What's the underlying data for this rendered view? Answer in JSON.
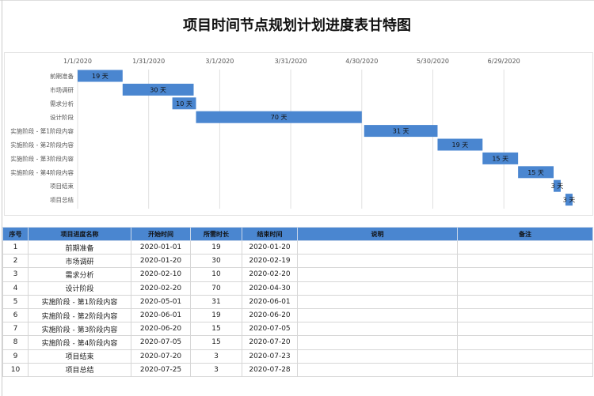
{
  "title": "项目时间节点规划计划进度表甘特图",
  "chart_data": {
    "type": "bar",
    "orientation": "horizontal-gantt",
    "categories": [
      "前期准备",
      "市场调研",
      "需求分析",
      "设计阶段",
      "实施阶段 - 第1阶段内容",
      "实施阶段 - 第2阶段内容",
      "实施阶段 - 第3阶段内容",
      "实施阶段 - 第4阶段内容",
      "项目结束",
      "项目总结"
    ],
    "start": [
      "2020-01-01",
      "2020-01-20",
      "2020-02-10",
      "2020-02-20",
      "2020-05-01",
      "2020-06-01",
      "2020-06-20",
      "2020-07-05",
      "2020-07-20",
      "2020-07-25"
    ],
    "values": [
      19,
      30,
      10,
      70,
      31,
      19,
      15,
      15,
      3,
      3
    ],
    "data_label_suffix": " 天",
    "x_ticks": [
      "1/1/2020",
      "1/31/2020",
      "3/1/2020",
      "3/31/2020",
      "4/30/2020",
      "5/30/2020",
      "6/29/2020"
    ],
    "xlim": [
      "2020-01-01",
      "2020-08-04"
    ],
    "grid": "vertical",
    "bar_color": "#4a86d0"
  },
  "table": {
    "headers": [
      "序号",
      "项目进度名称",
      "开始时间",
      "所需时长",
      "结束时间",
      "说明",
      "备注"
    ],
    "rows": [
      [
        "1",
        "前期准备",
        "2020-01-01",
        "19",
        "2020-01-20",
        "",
        ""
      ],
      [
        "2",
        "市场调研",
        "2020-01-20",
        "30",
        "2020-02-19",
        "",
        ""
      ],
      [
        "3",
        "需求分析",
        "2020-02-10",
        "10",
        "2020-02-20",
        "",
        ""
      ],
      [
        "4",
        "设计阶段",
        "2020-02-20",
        "70",
        "2020-04-30",
        "",
        ""
      ],
      [
        "5",
        "实施阶段 - 第1阶段内容",
        "2020-05-01",
        "31",
        "2020-06-01",
        "",
        ""
      ],
      [
        "6",
        "实施阶段 - 第2阶段内容",
        "2020-06-01",
        "19",
        "2020-06-20",
        "",
        ""
      ],
      [
        "7",
        "实施阶段 - 第3阶段内容",
        "2020-06-20",
        "15",
        "2020-07-05",
        "",
        ""
      ],
      [
        "8",
        "实施阶段 - 第4阶段内容",
        "2020-07-05",
        "15",
        "2020-07-20",
        "",
        ""
      ],
      [
        "9",
        "项目结束",
        "2020-07-20",
        "3",
        "2020-07-23",
        "",
        ""
      ],
      [
        "10",
        "项目总结",
        "2020-07-25",
        "3",
        "2020-07-28",
        "",
        ""
      ]
    ]
  }
}
